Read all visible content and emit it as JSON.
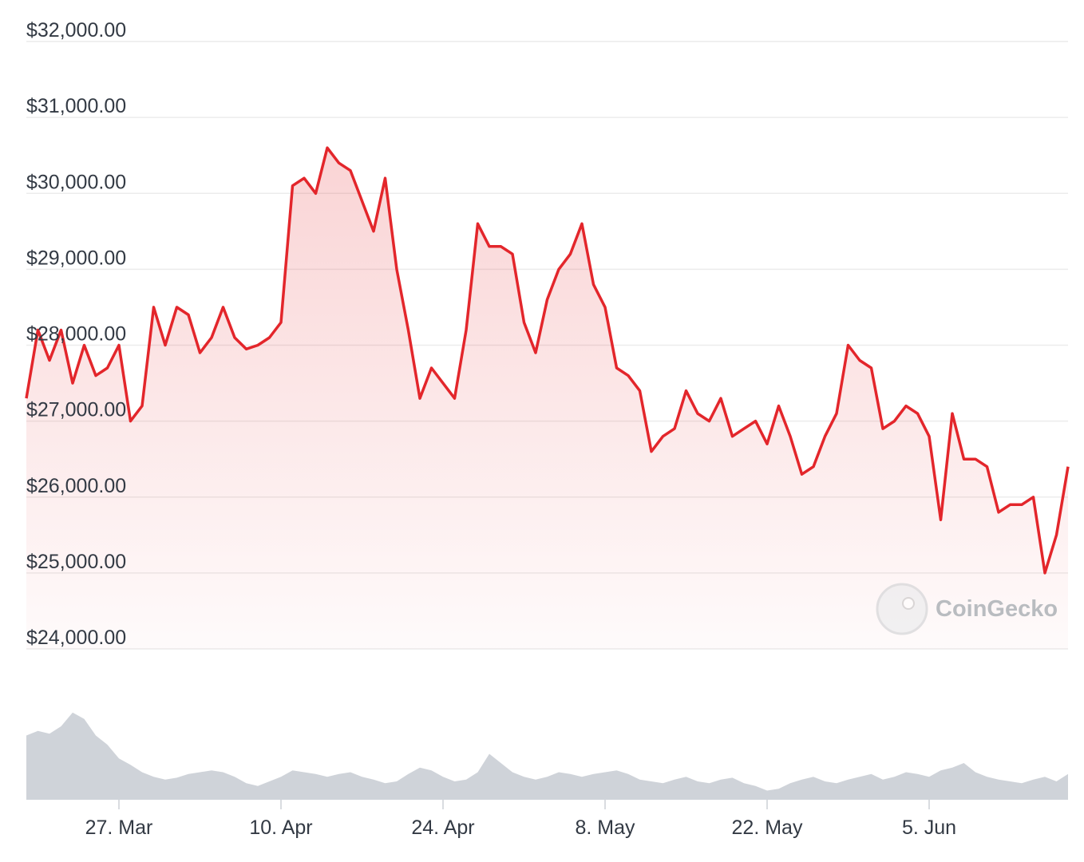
{
  "chart_data": {
    "type": "line",
    "watermark": "CoinGecko",
    "categories": [
      null,
      null,
      null,
      null,
      null,
      null,
      null,
      null,
      "27. Mar",
      null,
      null,
      null,
      null,
      null,
      null,
      null,
      null,
      null,
      null,
      null,
      null,
      null,
      "10. Apr",
      null,
      null,
      null,
      null,
      null,
      null,
      null,
      null,
      null,
      null,
      null,
      null,
      null,
      "24. Apr",
      null,
      null,
      null,
      null,
      null,
      null,
      null,
      null,
      null,
      null,
      null,
      null,
      null,
      "8. May",
      null,
      null,
      null,
      null,
      null,
      null,
      null,
      null,
      null,
      null,
      null,
      null,
      null,
      "22. May",
      null,
      null,
      null,
      null,
      null,
      null,
      null,
      null,
      null,
      null,
      null,
      null,
      null,
      "5. Jun",
      null,
      null,
      null,
      null,
      null,
      null,
      null,
      null,
      null,
      null,
      null,
      null
    ],
    "series": [
      {
        "color": "#e3262b",
        "values": [
          27300,
          28200,
          27800,
          28200,
          27500,
          28000,
          27600,
          27700,
          28000,
          27000,
          27200,
          28500,
          28000,
          28500,
          28400,
          27900,
          28100,
          28500,
          28100,
          27950,
          28000,
          28100,
          28300,
          30100,
          30200,
          30000,
          30600,
          30400,
          30300,
          29900,
          29500,
          30200,
          29000,
          28200,
          27300,
          27700,
          27500,
          27300,
          28200,
          29600,
          29300,
          29300,
          29200,
          28300,
          27900,
          28600,
          29000,
          29200,
          29600,
          28800,
          28500,
          27700,
          27600,
          27400,
          26600,
          26800,
          26900,
          27400,
          27100,
          27000,
          27300,
          26800,
          26900,
          27000,
          26700,
          27200,
          26800,
          26300,
          26400,
          26800,
          27100,
          28000,
          27800,
          27700,
          26900,
          27000,
          27200,
          27100,
          26800,
          25700,
          27100,
          26500,
          26500,
          26400,
          25800,
          25900,
          25900,
          26000,
          25000,
          25500,
          26400
        ]
      },
      {
        "color": "#cfd3d9",
        "axis": "y2",
        "values": [
          70,
          75,
          72,
          80,
          95,
          88,
          70,
          60,
          45,
          38,
          30,
          25,
          22,
          24,
          28,
          30,
          32,
          30,
          25,
          18,
          15,
          20,
          25,
          32,
          30,
          28,
          25,
          28,
          30,
          25,
          22,
          18,
          20,
          28,
          35,
          32,
          25,
          20,
          22,
          30,
          50,
          40,
          30,
          25,
          22,
          25,
          30,
          28,
          25,
          28,
          30,
          32,
          28,
          22,
          20,
          18,
          22,
          25,
          20,
          18,
          22,
          24,
          18,
          15,
          10,
          12,
          18,
          22,
          25,
          20,
          18,
          22,
          25,
          28,
          22,
          25,
          30,
          28,
          25,
          32,
          35,
          40,
          30,
          25,
          22,
          20,
          18,
          22,
          25,
          20,
          28
        ]
      }
    ],
    "ylim": [
      24000,
      32000
    ],
    "yticks": [
      {
        "value": 24000,
        "label": "$24,000.00"
      },
      {
        "value": 25000,
        "label": "$25,000.00"
      },
      {
        "value": 26000,
        "label": "$26,000.00"
      },
      {
        "value": 27000,
        "label": "$27,000.00"
      },
      {
        "value": 28000,
        "label": "$28,000.00"
      },
      {
        "value": 29000,
        "label": "$29,000.00"
      },
      {
        "value": 30000,
        "label": "$30,000.00"
      },
      {
        "value": 31000,
        "label": "$31,000.00"
      },
      {
        "value": 32000,
        "label": "$32,000.00"
      }
    ],
    "y2lim": [
      0,
      100
    ],
    "grid": true
  }
}
